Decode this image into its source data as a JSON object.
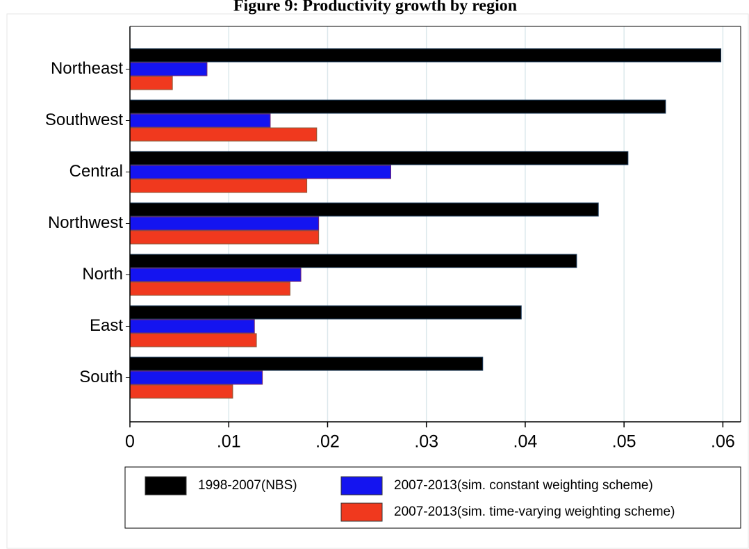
{
  "chart_data": {
    "type": "hbar",
    "title": "Figure 9: Productivity growth by region",
    "categories": [
      "Northeast",
      "Southwest",
      "Central",
      "Northwest",
      "North",
      "East",
      "South"
    ],
    "series": [
      {
        "name": "1998-2007(NBS)",
        "color": "#000000",
        "values": [
          0.0598,
          0.0542,
          0.0504,
          0.0474,
          0.0452,
          0.0396,
          0.0357
        ]
      },
      {
        "name": "2007-2013(sim. constant weighting scheme)",
        "color": "#1414f0",
        "values": [
          0.0078,
          0.0142,
          0.0264,
          0.0191,
          0.0173,
          0.0126,
          0.0134
        ]
      },
      {
        "name": "2007-2013(sim. time-varying weighting scheme)",
        "color": "#f0391e",
        "values": [
          0.0043,
          0.0189,
          0.0179,
          0.0191,
          0.0162,
          0.0128,
          0.0104
        ]
      }
    ],
    "xlim": [
      0,
      0.0618
    ],
    "xticks": [
      0,
      {
        "value": 0.01,
        "label": ".01"
      },
      {
        "value": 0.02,
        "label": ".02"
      },
      {
        "value": 0.03,
        "label": ".03"
      },
      {
        "value": 0.04,
        "label": ".04"
      },
      {
        "value": 0.05,
        "label": ".05"
      },
      {
        "value": 0.06,
        "label": ".06"
      }
    ],
    "grid": true
  }
}
